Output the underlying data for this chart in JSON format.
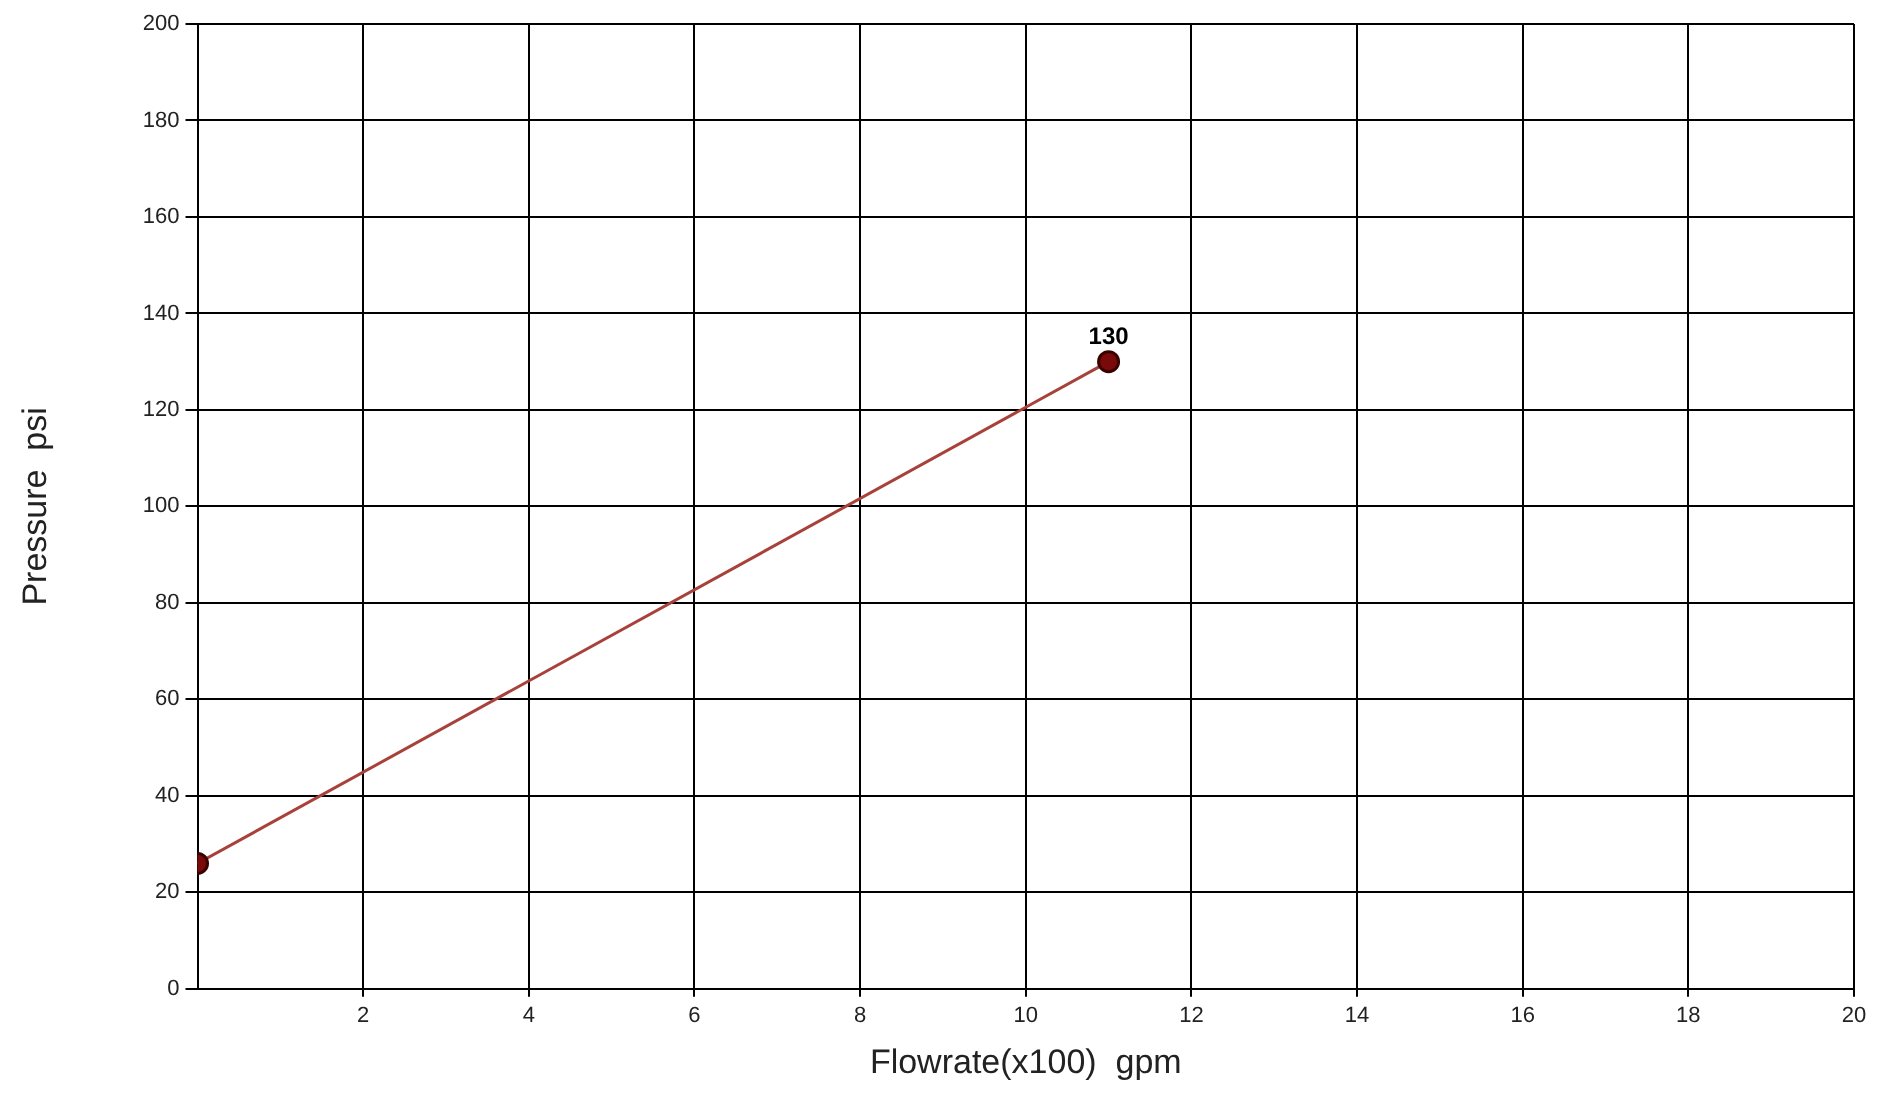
{
  "chart_data": {
    "type": "line",
    "xlabel": "Flowrate(x100)  gpm",
    "ylabel": "Pressure  psi",
    "x": [
      0,
      11
    ],
    "series": [
      {
        "color": "#a8413a",
        "values": [
          26,
          130
        ],
        "value_labels": [
          null,
          "130"
        ]
      }
    ],
    "xlim": [
      0,
      20
    ],
    "xticks": [
      2,
      4,
      6,
      8,
      10,
      12,
      14,
      16,
      18,
      20
    ],
    "ylim": [
      0,
      200
    ],
    "yticks": [
      0,
      20,
      40,
      60,
      80,
      100,
      120,
      140,
      160,
      180,
      200
    ],
    "grid": true,
    "legend": false,
    "marker": "circle",
    "line_style": "solid"
  }
}
